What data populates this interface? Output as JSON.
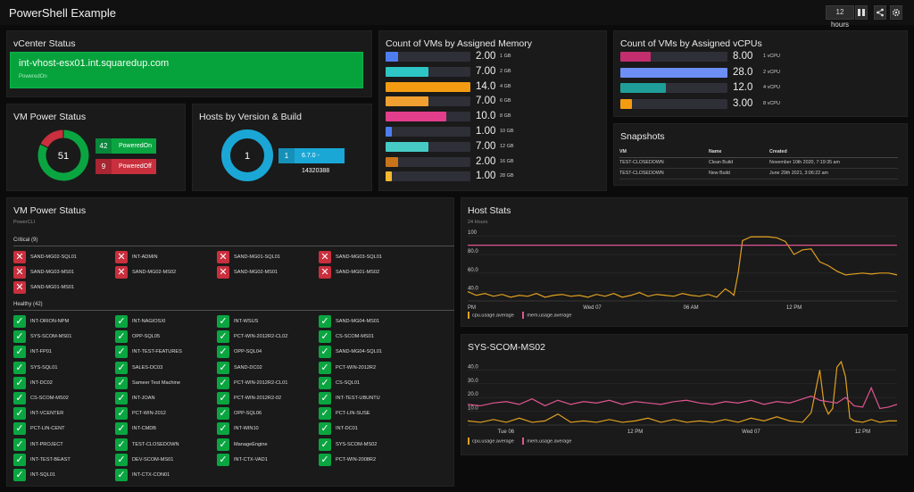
{
  "app": {
    "title": "PowerShell Example",
    "time_range": "12 hours"
  },
  "toolbar": {
    "grid_icon": "grid-icon",
    "share_icon": "share-icon",
    "settings_icon": "gear-icon"
  },
  "vcenter": {
    "title": "vCenter Status",
    "host": "int-vhost-esx01.int.squaredup.com",
    "state": "PoweredOn"
  },
  "vm_power_donut": {
    "title": "VM Power Status",
    "total": "51",
    "segments": [
      {
        "label": "PoweredOn",
        "count": "42",
        "value": 42,
        "color": "#0aa541"
      },
      {
        "label": "PoweredOff",
        "count": "9",
        "value": 9,
        "color": "#c92f3d"
      }
    ]
  },
  "hosts_donut": {
    "title": "Hosts by Version & Build",
    "total": "1",
    "segments": [
      {
        "label": "6.7.0 - 14320388",
        "count": "1",
        "value": 1,
        "color": "#1aa7d6"
      }
    ]
  },
  "memory_chart": {
    "title": "Count of VMs by Assigned Memory",
    "max": 14,
    "rows": [
      {
        "cat": "1 GB",
        "value": 2,
        "label": "2.00",
        "color": "#4e7df0"
      },
      {
        "cat": "2 GB",
        "value": 7,
        "label": "7.00",
        "color": "#2ec5c5"
      },
      {
        "cat": "4 GB",
        "value": 14,
        "label": "14.0",
        "color": "#f39c12"
      },
      {
        "cat": "6 GB",
        "value": 7,
        "label": "7.00",
        "color": "#f0a030"
      },
      {
        "cat": "8 GB",
        "value": 10,
        "label": "10.0",
        "color": "#e23e8c"
      },
      {
        "cat": "10 GB",
        "value": 1,
        "label": "1.00",
        "color": "#4e7df0"
      },
      {
        "cat": "12 GB",
        "value": 7,
        "label": "7.00",
        "color": "#46cbc4"
      },
      {
        "cat": "16 GB",
        "value": 2,
        "label": "2.00",
        "color": "#c9731a"
      },
      {
        "cat": "28 GB",
        "value": 1,
        "label": "1.00",
        "color": "#f2b830"
      }
    ]
  },
  "vcpu_chart": {
    "title": "Count of VMs by Assigned vCPUs",
    "max": 28,
    "rows": [
      {
        "cat": "1 vCPU",
        "value": 8,
        "label": "8.00",
        "color": "#c32e6f"
      },
      {
        "cat": "2 vCPU",
        "value": 28,
        "label": "28.0",
        "color": "#6d8ef5"
      },
      {
        "cat": "4 vCPU",
        "value": 12,
        "label": "12.0",
        "color": "#1f9e99"
      },
      {
        "cat": "8 vCPU",
        "value": 3,
        "label": "3.00",
        "color": "#f39c12"
      }
    ]
  },
  "snapshots": {
    "title": "Snapshots",
    "columns": [
      "VM",
      "Name",
      "Created"
    ],
    "rows": [
      [
        "TEST-CLOSEDOWN",
        "Clean Build",
        "November 10th 2020, 7:19:35 am"
      ],
      [
        "TEST-CLOSEDOWN",
        "New Build",
        "June 29th 2021, 3:06:22 am"
      ]
    ]
  },
  "vm_status": {
    "title": "VM Power Status",
    "subtitle": "PowerCLI",
    "critical_label": "Critical (9)",
    "healthy_label": "Healthy (42)",
    "critical": [
      "SAND-MG02-SQL01",
      "INT-ADMIN",
      "SAND-MG01-SQL01",
      "SAND-MG03-SQL01",
      "SAND-MG03-MS01",
      "SAND-MG02-MS02",
      "SAND-MG02-MS01",
      "SAND-MG01-MS02",
      "SAND-MG01-MS01"
    ],
    "healthy": [
      "INT-ORION-NPM",
      "INT-NAGIOSXI",
      "INT-WSUS",
      "SAND-MG04-MS01",
      "SYS-SCOM-MS01",
      "OPP-SQL05",
      "PCT-WIN-2012R2-CL02",
      "CS-SCOM-MS01",
      "INT-FP01",
      "INT-TEST-FEATURES",
      "OPP-SQL04",
      "SAND-MG04-SQL01",
      "SYS-SQL01",
      "SALES-DC03",
      "SAND-DC02",
      "PCT-WIN-2012R2",
      "INT-DC02",
      "Sameer Test Machine",
      "PCT-WIN-2012R2-CL01",
      "CS-SQL01",
      "CS-SCOM-MS02",
      "INT-JOAN",
      "PCT-WIN-2012R2-02",
      "INT-TEST-UBUNTU",
      "INT-VCENTER",
      "PCT-WIN-2012",
      "OPP-SQL06",
      "PCT-LIN-SUSE",
      "PCT-LIN-CENT",
      "INT-CMDB",
      "INT-WIN10",
      "INT-DC01",
      "INT-PROJECT",
      "TEST-CLOSEDOWN",
      "ManageEngine",
      "SYS-SCOM-MS02",
      "INT-TEST-BEAST",
      "DEV-SCOM-MS01",
      "INT-CTX-VAD1",
      "PCT-WIN-2008R2",
      "INT-SQL01",
      "INT-CTX-CON01"
    ]
  },
  "chart_data": [
    {
      "type": "line",
      "title": "Host Stats",
      "subtitle": "24 Hours",
      "x_ticks": [
        "PM",
        "Wed 07",
        "06 AM",
        "12 PM"
      ],
      "y_ticks": [
        "100",
        "80.0",
        "60.0",
        "40.0"
      ],
      "ylim": [
        30,
        105
      ],
      "xlim": [
        0,
        100
      ],
      "series": [
        {
          "name": "cpu.usage.average",
          "color": "#e0a020",
          "x": [
            0,
            2,
            4,
            6,
            8,
            10,
            12,
            14,
            16,
            18,
            20,
            22,
            24,
            26,
            28,
            30,
            32,
            34,
            36,
            38,
            40,
            42,
            44,
            46,
            48,
            50,
            52,
            54,
            56,
            58,
            60,
            61,
            62,
            63,
            64,
            66,
            68,
            70,
            72,
            74,
            76,
            78,
            80,
            82,
            84,
            86,
            88,
            90,
            92,
            94,
            96,
            98,
            100
          ],
          "y": [
            40,
            36,
            38,
            35,
            37,
            34,
            36,
            35,
            38,
            34,
            36,
            37,
            35,
            36,
            34,
            37,
            35,
            38,
            34,
            36,
            39,
            35,
            37,
            36,
            35,
            38,
            36,
            35,
            37,
            34,
            43,
            40,
            36,
            60,
            95,
            99,
            99,
            99,
            98,
            94,
            80,
            85,
            86,
            72,
            68,
            62,
            58,
            59,
            60,
            59,
            60,
            60,
            58
          ]
        },
        {
          "name": "mem.usage.average",
          "color": "#e0558f",
          "x": [
            0,
            100
          ],
          "y": [
            90,
            90
          ]
        }
      ]
    },
    {
      "type": "line",
      "title": "SYS-SCOM-MS02",
      "x_ticks": [
        "Tue 06",
        "12 PM",
        "Wed 07",
        "12 PM"
      ],
      "y_ticks": [
        "40.0",
        "30.0",
        "20.0",
        "10.0"
      ],
      "ylim": [
        0,
        48
      ],
      "xlim": [
        0,
        100
      ],
      "series": [
        {
          "name": "cpu.usage.average",
          "color": "#e0a020",
          "x": [
            0,
            3,
            6,
            9,
            12,
            15,
            18,
            21,
            24,
            27,
            30,
            33,
            36,
            39,
            42,
            45,
            48,
            51,
            54,
            57,
            60,
            63,
            66,
            69,
            72,
            75,
            78,
            80,
            82,
            83,
            84,
            85,
            86,
            87,
            88,
            89,
            90,
            92,
            94,
            96,
            98,
            100
          ],
          "y": [
            3,
            2,
            4,
            2,
            5,
            2,
            3,
            8,
            2,
            3,
            2,
            4,
            2,
            3,
            5,
            2,
            4,
            2,
            3,
            2,
            4,
            2,
            5,
            3,
            6,
            3,
            2,
            9,
            40,
            15,
            8,
            12,
            42,
            46,
            35,
            5,
            3,
            2,
            4,
            2,
            3,
            3
          ]
        },
        {
          "name": "mem.usage.average",
          "color": "#e0558f",
          "x": [
            0,
            3,
            6,
            9,
            12,
            15,
            18,
            21,
            24,
            27,
            30,
            33,
            36,
            39,
            42,
            45,
            48,
            51,
            54,
            57,
            60,
            63,
            66,
            69,
            72,
            75,
            78,
            80,
            82,
            84,
            86,
            88,
            90,
            92,
            94,
            96,
            98,
            100
          ],
          "y": [
            15,
            14,
            16,
            17,
            15,
            19,
            14,
            18,
            15,
            17,
            16,
            18,
            15,
            17,
            16,
            15,
            17,
            18,
            16,
            15,
            17,
            16,
            18,
            15,
            17,
            16,
            19,
            21,
            18,
            17,
            16,
            20,
            14,
            13,
            27,
            12,
            13,
            15
          ]
        }
      ]
    }
  ]
}
